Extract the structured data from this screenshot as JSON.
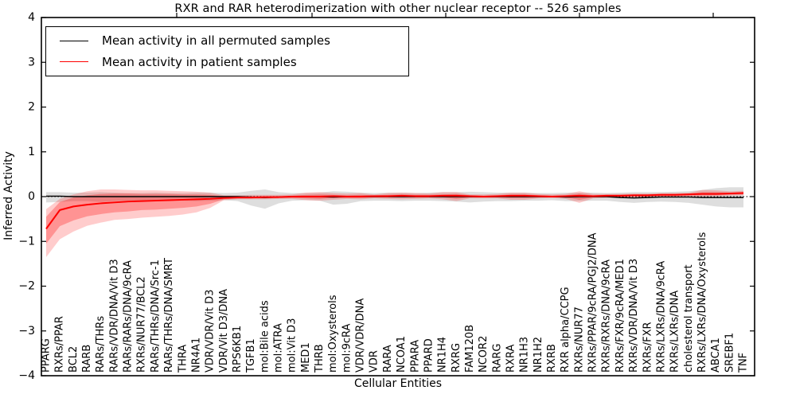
{
  "figure": {
    "title": "RXR and RAR heterodimerization with other nuclear receptor -- 526 samples",
    "xlabel": "Cellular Entities",
    "ylabel": "Inferred Activity"
  },
  "legend": {
    "items": [
      {
        "label": "Mean activity in all permuted samples",
        "color": "#000000"
      },
      {
        "label": "Mean activity in patient samples",
        "color": "#ff0000"
      }
    ]
  },
  "chart_data": {
    "type": "line",
    "title": "RXR and RAR heterodimerization with other nuclear receptor -- 526 samples",
    "xlabel": "Cellular Entities",
    "ylabel": "Inferred Activity",
    "ylim": [
      -4,
      4
    ],
    "y_ticks": [
      -4,
      -3,
      -2,
      -1,
      0,
      1,
      2,
      3,
      4
    ],
    "grid": false,
    "zero_line": true,
    "legend_position": "upper left",
    "categories": [
      "PPARG",
      "RXRs/PPAR",
      "BCL2",
      "RARB",
      "RARs/THRs",
      "RARs/VDR/DNA/Vit D3",
      "RARs/RARs/DNA/9cRA",
      "RXRs/NUR77/BCL2",
      "RARs/THRs/DNA/Src-1",
      "RARs/THRs/DNA/SMRT",
      "THRA",
      "NR4A1",
      "VDR/VDR/Vit D3",
      "VDR/Vit D3/DNA",
      "RPS6KB1",
      "TGFB1",
      "mol:Bile acids",
      "mol:ATRA",
      "mol:Vit D3",
      "MED1",
      "THRB",
      "mol:Oxysterols",
      "mol:9cRA",
      "VDR/VDR/DNA",
      "VDR",
      "RARA",
      "NCOA1",
      "PPARA",
      "PPARD",
      "NR1H4",
      "RXRG",
      "FAM120B",
      "NCOR2",
      "RARG",
      "RXRA",
      "NR1H3",
      "NR1H2",
      "RXRB",
      "RXR alpha/CCPG",
      "RXRs/NUR77",
      "RXRs/PPAR/9cRA/PGJ2/DNA",
      "RXRs/RXRs/DNA/9cRA",
      "RXRs/FXR/9cRA/MED1",
      "RXRs/VDR/DNA/Vit D3",
      "RXRs/FXR",
      "RXRs/LXRs/DNA/9cRA",
      "RXRs/LXRs/DNA",
      "cholesterol transport",
      "RXRs/LXRs/DNA/Oxysterols",
      "ABCA1",
      "SREBF1",
      "TNF"
    ],
    "series": [
      {
        "name": "Mean activity in all permuted samples",
        "color": "#000000",
        "band_color": "rgba(0,0,0,0.13)",
        "values": [
          0.01,
          0.01,
          0.0,
          0.0,
          0.0,
          0.0,
          0.0,
          0.0,
          0.0,
          0.0,
          0.0,
          0.0,
          0.0,
          0.0,
          0.0,
          -0.01,
          -0.02,
          -0.01,
          0.0,
          0.0,
          0.0,
          -0.01,
          0.0,
          0.0,
          0.0,
          0.0,
          0.0,
          0.0,
          0.0,
          0.0,
          0.0,
          0.0,
          0.0,
          0.0,
          0.0,
          0.0,
          0.0,
          0.0,
          -0.01,
          0.0,
          0.0,
          0.0,
          -0.02,
          -0.03,
          -0.02,
          -0.01,
          -0.01,
          -0.01,
          -0.02,
          -0.02,
          -0.02,
          -0.02
        ],
        "band_lo": [
          -0.13,
          -0.12,
          -0.1,
          -0.1,
          -0.12,
          -0.1,
          -0.09,
          -0.09,
          -0.1,
          -0.09,
          -0.09,
          -0.1,
          -0.09,
          -0.08,
          -0.1,
          -0.2,
          -0.27,
          -0.15,
          -0.09,
          -0.08,
          -0.09,
          -0.18,
          -0.16,
          -0.1,
          -0.09,
          -0.09,
          -0.1,
          -0.09,
          -0.09,
          -0.1,
          -0.11,
          -0.13,
          -0.11,
          -0.1,
          -0.1,
          -0.09,
          -0.09,
          -0.08,
          -0.1,
          -0.1,
          -0.09,
          -0.09,
          -0.12,
          -0.14,
          -0.12,
          -0.11,
          -0.12,
          -0.14,
          -0.18,
          -0.22,
          -0.24,
          -0.24
        ],
        "band_hi": [
          0.1,
          0.1,
          0.09,
          0.09,
          0.1,
          0.09,
          0.08,
          0.08,
          0.09,
          0.08,
          0.08,
          0.09,
          0.09,
          0.08,
          0.09,
          0.13,
          0.16,
          0.1,
          0.08,
          0.08,
          0.09,
          0.12,
          0.11,
          0.09,
          0.08,
          0.09,
          0.09,
          0.08,
          0.09,
          0.1,
          0.1,
          0.11,
          0.1,
          0.09,
          0.09,
          0.09,
          0.08,
          0.08,
          0.09,
          0.09,
          0.09,
          0.08,
          0.09,
          0.1,
          0.1,
          0.1,
          0.11,
          0.12,
          0.15,
          0.19,
          0.21,
          0.21
        ]
      },
      {
        "name": "Mean activity in patient samples",
        "color": "#ff0000",
        "band_color": "rgba(255,0,0,0.20)",
        "band_inner_color": "rgba(255,0,0,0.28)",
        "values": [
          -0.72,
          -0.3,
          -0.22,
          -0.18,
          -0.15,
          -0.13,
          -0.11,
          -0.1,
          -0.09,
          -0.08,
          -0.07,
          -0.06,
          -0.05,
          -0.03,
          -0.02,
          -0.02,
          -0.01,
          -0.01,
          0.0,
          0.0,
          0.0,
          0.01,
          0.0,
          0.0,
          0.01,
          0.01,
          0.02,
          0.01,
          0.01,
          0.02,
          0.02,
          0.01,
          0.0,
          0.01,
          0.02,
          0.02,
          0.01,
          0.0,
          0.01,
          0.02,
          0.01,
          0.02,
          0.02,
          0.03,
          0.03,
          0.04,
          0.04,
          0.05,
          0.06,
          0.06,
          0.07,
          0.08
        ],
        "band_lo": [
          -1.35,
          -0.95,
          -0.78,
          -0.65,
          -0.58,
          -0.52,
          -0.5,
          -0.47,
          -0.45,
          -0.43,
          -0.4,
          -0.35,
          -0.25,
          -0.08,
          -0.06,
          -0.06,
          -0.06,
          -0.05,
          -0.05,
          -0.08,
          -0.09,
          -0.07,
          -0.05,
          -0.06,
          -0.04,
          -0.05,
          -0.06,
          -0.05,
          -0.04,
          -0.06,
          -0.1,
          -0.04,
          -0.04,
          -0.04,
          -0.07,
          -0.07,
          -0.04,
          -0.03,
          -0.05,
          -0.14,
          -0.04,
          -0.03,
          -0.03,
          -0.02,
          -0.02,
          -0.01,
          -0.01,
          0.0,
          0.0,
          0.01,
          0.02,
          0.03
        ],
        "band_hi": [
          -0.28,
          -0.05,
          0.05,
          0.12,
          0.16,
          0.16,
          0.15,
          0.14,
          0.14,
          0.13,
          0.12,
          0.11,
          0.09,
          0.03,
          0.03,
          0.04,
          0.04,
          0.04,
          0.05,
          0.09,
          0.1,
          0.08,
          0.07,
          0.08,
          0.05,
          0.08,
          0.09,
          0.08,
          0.07,
          0.1,
          0.1,
          0.05,
          0.05,
          0.06,
          0.09,
          0.09,
          0.06,
          0.05,
          0.06,
          0.12,
          0.06,
          0.06,
          0.06,
          0.07,
          0.07,
          0.08,
          0.08,
          0.09,
          0.15,
          0.14,
          0.12,
          0.13
        ],
        "band_inner_lo": [
          -1.05,
          -0.66,
          -0.53,
          -0.44,
          -0.39,
          -0.35,
          -0.33,
          -0.3,
          -0.29,
          -0.27,
          -0.25,
          -0.22,
          -0.16,
          -0.06,
          -0.04,
          -0.04,
          -0.04,
          -0.03,
          -0.03,
          -0.04,
          -0.05,
          -0.03,
          -0.03,
          -0.03,
          -0.02,
          -0.02,
          -0.02,
          -0.02,
          -0.02,
          -0.02,
          -0.05,
          -0.02,
          -0.02,
          -0.02,
          -0.03,
          -0.03,
          -0.02,
          -0.01,
          -0.02,
          -0.07,
          -0.02,
          -0.01,
          -0.01,
          0.0,
          0.0,
          0.01,
          0.01,
          0.02,
          0.03,
          0.03,
          0.04,
          0.05
        ],
        "band_inner_hi": [
          -0.45,
          -0.12,
          -0.02,
          0.03,
          0.06,
          0.07,
          0.07,
          0.06,
          0.06,
          0.06,
          0.05,
          0.05,
          0.04,
          0.01,
          0.01,
          0.01,
          0.01,
          0.01,
          0.02,
          0.04,
          0.05,
          0.04,
          0.03,
          0.04,
          0.03,
          0.04,
          0.05,
          0.04,
          0.04,
          0.05,
          0.06,
          0.03,
          0.02,
          0.03,
          0.05,
          0.05,
          0.03,
          0.02,
          0.03,
          0.07,
          0.03,
          0.04,
          0.04,
          0.05,
          0.05,
          0.06,
          0.06,
          0.07,
          0.1,
          0.1,
          0.09,
          0.1
        ]
      }
    ]
  }
}
